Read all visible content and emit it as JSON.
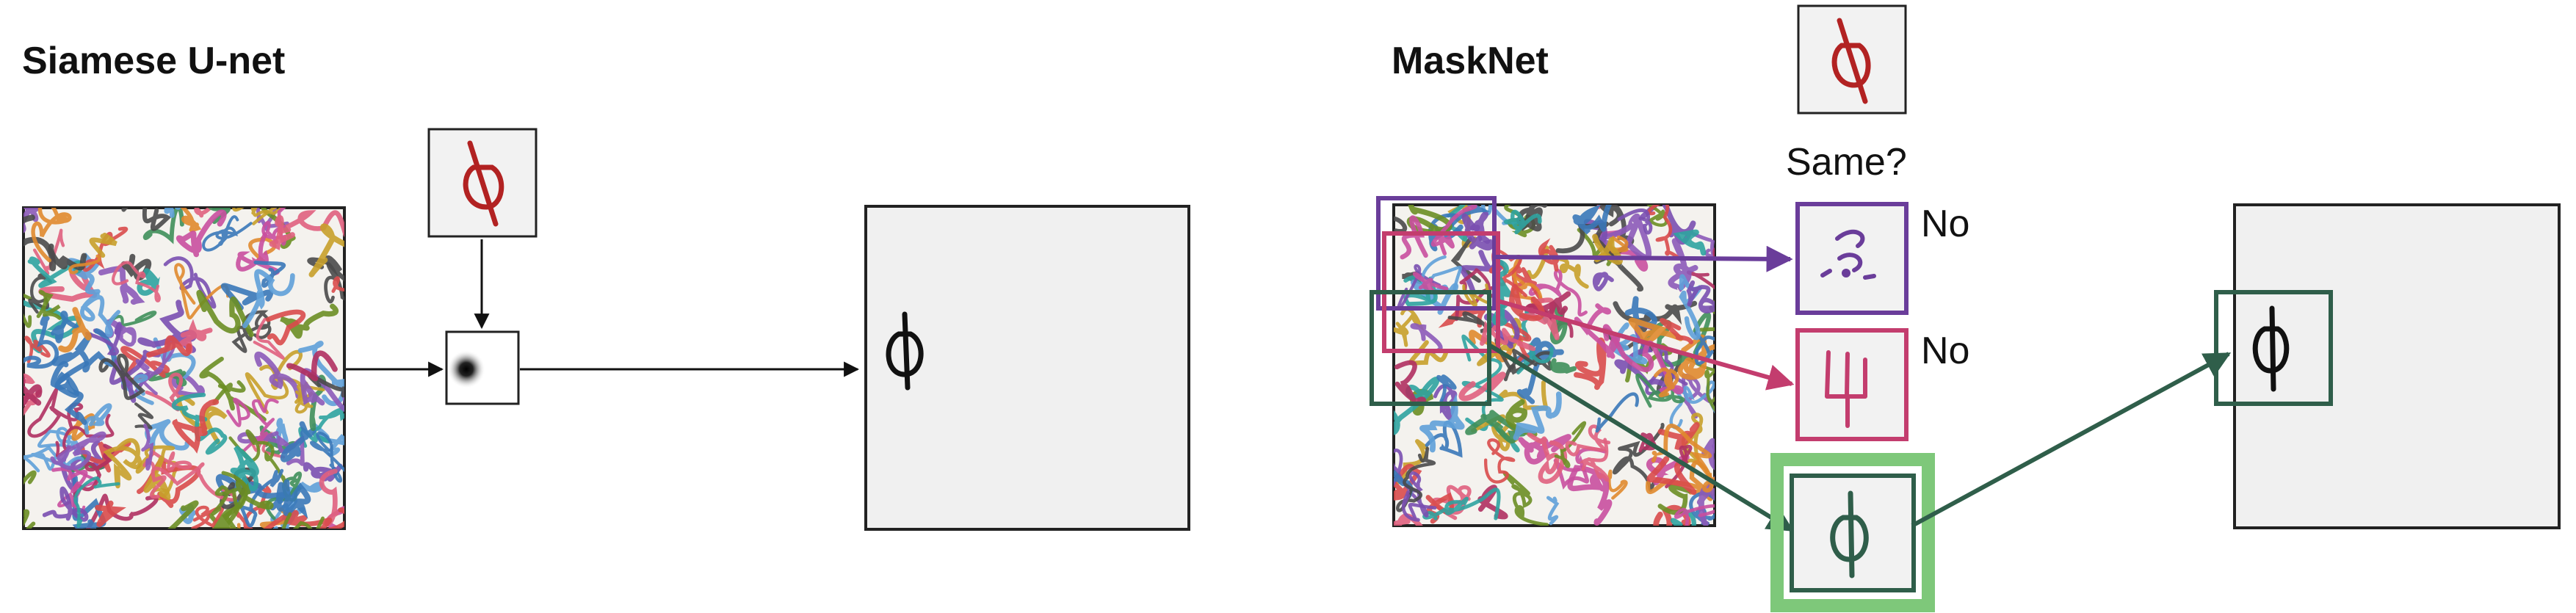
{
  "left_panel": {
    "title": "Siamese U-net"
  },
  "right_panel": {
    "title": "MaskNet",
    "question": "Same?",
    "candidates": [
      {
        "answer": "No",
        "color": "#6a3d9a"
      },
      {
        "answer": "No",
        "color": "#c33d6e"
      },
      {
        "answer": "",
        "color": "#2f5e4a",
        "highlight": "#7ec87a"
      }
    ]
  },
  "colors": {
    "query_stroke": "#b22222",
    "output_stroke": "#111111",
    "arrow": "#111111",
    "panel_fill": "#f0f0f0",
    "match_green": "#2f5e4a",
    "match_highlight": "#7ec87a"
  },
  "icons": {
    "query": "phi-glyph-icon",
    "heatmap": "gaussian-blob-icon",
    "clutter": "scribble-texture"
  }
}
